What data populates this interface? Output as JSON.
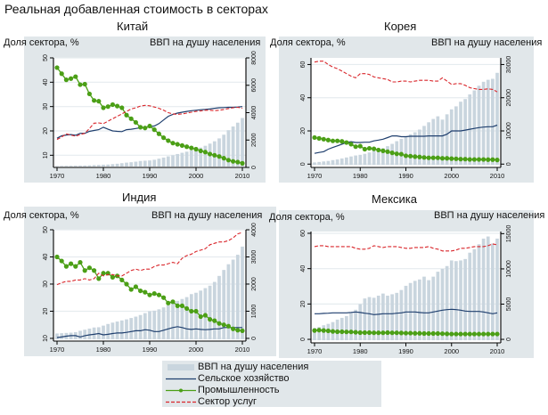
{
  "title": "Реальная добавленная стоимость в секторах",
  "colors": {
    "gdp_bars": "#c9d5de",
    "agriculture": "#1f3f6e",
    "industry": "#4b9f16",
    "services": "#d9262b",
    "panel_bg": "#e1e7ea",
    "plot_bg": "#ffffff",
    "grid": "#e6ecef"
  },
  "legend": {
    "items": [
      {
        "key": "gdp",
        "label": "ВВП на душу населения"
      },
      {
        "key": "agriculture",
        "label": "Сельское хозяйство"
      },
      {
        "key": "industry",
        "label": "Промышленность"
      },
      {
        "key": "services",
        "label": "Сектор услуг"
      }
    ]
  },
  "chart_data": [
    {
      "type": "bar+line",
      "title": "Китай",
      "ylabel_left": "Доля сектора, %",
      "ylabel_right": "ВВП на душу населения",
      "x": [
        1970,
        1971,
        1972,
        1973,
        1974,
        1975,
        1976,
        1977,
        1978,
        1979,
        1980,
        1981,
        1982,
        1983,
        1984,
        1985,
        1986,
        1987,
        1988,
        1989,
        1990,
        1991,
        1992,
        1993,
        1994,
        1995,
        1996,
        1997,
        1998,
        1999,
        2000,
        2001,
        2002,
        2003,
        2004,
        2005,
        2006,
        2007,
        2008,
        2009,
        2010
      ],
      "xticks": [
        1970,
        1980,
        1990,
        2000,
        2010
      ],
      "ylim_left": [
        5,
        50
      ],
      "yticks_left": [
        10,
        20,
        30,
        40,
        50
      ],
      "ylim_right": [
        0,
        8000
      ],
      "yticks_right": [
        0,
        2000,
        4000,
        6000,
        8000
      ],
      "series": [
        {
          "name": "ВВП на душу населения",
          "kind": "bar",
          "axis": "right",
          "values": [
            110,
            115,
            120,
            125,
            130,
            135,
            140,
            150,
            170,
            180,
            200,
            210,
            240,
            270,
            310,
            350,
            380,
            420,
            470,
            490,
            510,
            560,
            640,
            720,
            810,
            890,
            980,
            1070,
            1150,
            1240,
            1340,
            1450,
            1580,
            1740,
            1910,
            2120,
            2390,
            2720,
            2990,
            3270,
            3610
          ]
        },
        {
          "name": "Сельское хозяйство",
          "kind": "line",
          "axis": "left",
          "values": [
            17,
            18,
            18.3,
            18.5,
            18.2,
            19,
            19,
            19.8,
            20.2,
            20.5,
            21.5,
            20.7,
            20,
            19.8,
            19.7,
            20.5,
            20.7,
            21,
            21.3,
            21.5,
            21.8,
            22,
            23,
            24.5,
            26,
            26.8,
            27.3,
            27.7,
            28,
            28.3,
            28.5,
            28.7,
            28.8,
            29,
            29.3,
            29.5,
            29.6,
            29.7,
            29.7,
            29.8,
            30
          ]
        },
        {
          "name": "Промышленность",
          "kind": "line-marker",
          "axis": "left",
          "values": [
            46,
            43.5,
            41,
            41.5,
            42.3,
            39,
            39.2,
            35.2,
            32.5,
            32.2,
            29.5,
            30,
            30.8,
            30.2,
            29.5,
            26.5,
            25,
            23.5,
            21.5,
            21.2,
            22,
            20.5,
            18.8,
            17.2,
            16,
            15,
            14.5,
            14,
            13.5,
            13,
            12.5,
            11.8,
            11.3,
            10.5,
            10,
            9.5,
            8.8,
            8,
            7.5,
            7.2,
            6.7
          ]
        },
        {
          "name": "Сектор услуг",
          "kind": "dashed",
          "axis": "left",
          "values": [
            16.5,
            17.5,
            18.8,
            18.3,
            17.8,
            18.5,
            19,
            21,
            23.2,
            23.3,
            23,
            24,
            25,
            26,
            27,
            28,
            29,
            29.5,
            30.2,
            30.5,
            30.3,
            29.8,
            29.3,
            28.5,
            27.5,
            27,
            26.8,
            27,
            27.3,
            27.7,
            28,
            28.2,
            28.5,
            28.5,
            28.3,
            28.5,
            28.8,
            29.2,
            29.5,
            29.7,
            29.3
          ]
        }
      ]
    },
    {
      "type": "bar+line",
      "title": "Корея",
      "ylabel_left": "Доля сектора, %",
      "ylabel_right": "ВВП на душу населения",
      "x": [
        1970,
        1971,
        1972,
        1973,
        1974,
        1975,
        1976,
        1977,
        1978,
        1979,
        1980,
        1981,
        1982,
        1983,
        1984,
        1985,
        1986,
        1987,
        1988,
        1989,
        1990,
        1991,
        1992,
        1993,
        1994,
        1995,
        1996,
        1997,
        1998,
        1999,
        2000,
        2001,
        2002,
        2003,
        2004,
        2005,
        2006,
        2007,
        2008,
        2009,
        2010
      ],
      "xticks": [
        1970,
        1980,
        1990,
        2000,
        2010
      ],
      "ylim_left": [
        -2,
        64
      ],
      "yticks_left": [
        0,
        20,
        40,
        60
      ],
      "ylim_right": [
        -1000,
        32000
      ],
      "yticks_right": [
        0,
        10000,
        20000,
        30000
      ],
      "series": [
        {
          "name": "ВВП на душу населения",
          "kind": "bar",
          "axis": "right",
          "values": [
            500,
            650,
            800,
            950,
            1200,
            1400,
            1700,
            2000,
            2300,
            2600,
            2800,
            3100,
            3500,
            4000,
            4400,
            4800,
            5400,
            6100,
            6900,
            7600,
            8300,
            9000,
            9600,
            10400,
            11500,
            12600,
            13600,
            14400,
            13400,
            15000,
            16500,
            17400,
            18800,
            19600,
            21000,
            22200,
            23600,
            24800,
            25400,
            25700,
            27500
          ]
        },
        {
          "name": "Сельское хозяйство",
          "kind": "line",
          "axis": "left",
          "values": [
            6.5,
            7,
            7.5,
            9,
            10,
            11,
            12,
            13,
            13.5,
            13,
            13,
            13.2,
            13.2,
            14,
            14.5,
            15,
            16,
            17,
            17,
            16.5,
            16.5,
            16.8,
            16.8,
            16.8,
            16.8,
            17,
            17,
            17,
            17,
            18,
            20,
            20,
            20,
            20.5,
            21,
            21.5,
            22,
            22.3,
            22.5,
            22.5,
            23.5
          ]
        },
        {
          "name": "Промышленность",
          "kind": "line-marker",
          "axis": "left",
          "values": [
            16,
            15.5,
            15,
            14.5,
            14,
            14,
            13.7,
            13,
            12,
            10.5,
            10.8,
            9,
            9.5,
            9.2,
            8.5,
            8,
            7.5,
            6.8,
            6.2,
            6,
            5,
            4.8,
            4.5,
            4.3,
            4,
            3.8,
            3.8,
            3.8,
            3.5,
            3.5,
            3.3,
            3.2,
            3,
            3,
            2.8,
            2.8,
            2.8,
            2.8,
            2.7,
            2.7,
            2.5
          ]
        },
        {
          "name": "Сектор услуг",
          "kind": "dashed",
          "axis": "left",
          "values": [
            61.5,
            62,
            62,
            60,
            58.5,
            57.5,
            56,
            54.5,
            53,
            52,
            54.5,
            54.5,
            54,
            52.5,
            52,
            51.5,
            51,
            49.5,
            49.5,
            50,
            50,
            49.5,
            50,
            50.5,
            50.5,
            50.5,
            50,
            50,
            52,
            50,
            48,
            48.5,
            48.5,
            47.5,
            46,
            45.5,
            45,
            45,
            45.3,
            45,
            43.5
          ]
        }
      ]
    },
    {
      "type": "bar+line",
      "title": "Индия",
      "ylabel_left": "Доля сектора, %",
      "ylabel_right": "ВВП на душу населения",
      "x": [
        1970,
        1971,
        1972,
        1973,
        1974,
        1975,
        1976,
        1977,
        1978,
        1979,
        1980,
        1981,
        1982,
        1983,
        1984,
        1985,
        1986,
        1987,
        1988,
        1989,
        1990,
        1991,
        1992,
        1993,
        1994,
        1995,
        1996,
        1997,
        1998,
        1999,
        2000,
        2001,
        2002,
        2003,
        2004,
        2005,
        2006,
        2007,
        2008,
        2009,
        2010
      ],
      "xticks": [
        1970,
        1980,
        1990,
        2000,
        2010
      ],
      "ylim_left": [
        9,
        50
      ],
      "yticks_left": [
        10,
        20,
        30,
        40,
        50
      ],
      "ylim_right": [
        -100,
        4000
      ],
      "yticks_right": [
        0,
        1000,
        2000,
        3000,
        4000
      ],
      "series": [
        {
          "name": "ВВП на душу населения",
          "kind": "bar",
          "axis": "right",
          "values": [
            180,
            190,
            200,
            210,
            230,
            280,
            320,
            360,
            400,
            410,
            470,
            530,
            580,
            620,
            660,
            700,
            750,
            800,
            860,
            930,
            1000,
            1020,
            1070,
            1140,
            1220,
            1300,
            1380,
            1450,
            1520,
            1630,
            1680,
            1760,
            1850,
            1940,
            2080,
            2300,
            2520,
            2730,
            2900,
            3080,
            3380
          ]
        },
        {
          "name": "Сельское хозяйство",
          "kind": "line",
          "axis": "left",
          "values": [
            10.3,
            10.5,
            10.8,
            11,
            11,
            10.5,
            11,
            11.3,
            11.5,
            11.8,
            11.3,
            11.5,
            11.8,
            12,
            12,
            12.2,
            12.5,
            12.8,
            12.8,
            13.2,
            13,
            12.5,
            12.5,
            13,
            13.5,
            14,
            14.3,
            14,
            13.5,
            13.3,
            13.5,
            13.3,
            13.2,
            13.3,
            13.5,
            13.5,
            14,
            14,
            14,
            14,
            14
          ]
        },
        {
          "name": "Промышленность",
          "kind": "line-marker",
          "axis": "left",
          "values": [
            40,
            38.5,
            36.5,
            37.5,
            36.5,
            38,
            35,
            36,
            35,
            32,
            34,
            34,
            32.5,
            33,
            31.5,
            30,
            28,
            29,
            27.5,
            27,
            26,
            26.5,
            26,
            25,
            23,
            23.5,
            22,
            22,
            21,
            20,
            20,
            18,
            18.5,
            17,
            16.5,
            15.5,
            15,
            14.5,
            13.5,
            13,
            12.8
          ]
        },
        {
          "name": "Сектор услуг",
          "kind": "dashed",
          "axis": "left",
          "values": [
            29.8,
            30.5,
            31,
            31,
            31.5,
            31.5,
            32,
            31.5,
            32,
            34,
            33,
            33.5,
            33.5,
            33,
            33,
            34,
            35,
            35.5,
            35,
            35.5,
            35.5,
            36.5,
            37,
            37,
            37.5,
            38,
            37.5,
            39.5,
            40.5,
            41,
            42,
            42.5,
            43,
            44.5,
            45,
            45.5,
            45.5,
            46,
            47,
            48.5,
            49
          ]
        }
      ]
    },
    {
      "type": "bar+line",
      "title": "Мексика",
      "ylabel_left": "Доля сектора, %",
      "ylabel_right": "ВВП на душу населения",
      "x": [
        1970,
        1971,
        1972,
        1973,
        1974,
        1975,
        1976,
        1977,
        1978,
        1979,
        1980,
        1981,
        1982,
        1983,
        1984,
        1985,
        1986,
        1987,
        1988,
        1989,
        1990,
        1991,
        1992,
        1993,
        1994,
        1995,
        1996,
        1997,
        1998,
        1999,
        2000,
        2001,
        2002,
        2003,
        2004,
        2005,
        2006,
        2007,
        2008,
        2009,
        2010
      ],
      "xticks": [
        1970,
        1980,
        1990,
        2000,
        2010
      ],
      "ylim_left": [
        -2,
        61
      ],
      "yticks_left": [
        0,
        20,
        40,
        60
      ],
      "ylim_right": [
        -500,
        15300
      ],
      "yticks_right": [
        0,
        5000,
        10000,
        15000
      ],
      "series": [
        {
          "name": "ВВП на душу населения",
          "kind": "bar",
          "axis": "right",
          "values": [
            1600,
            1750,
            2000,
            2200,
            2450,
            2800,
            3050,
            3300,
            3700,
            4200,
            5000,
            5800,
            6000,
            5900,
            6200,
            6500,
            6200,
            6400,
            6600,
            7000,
            7600,
            8000,
            8300,
            8500,
            8900,
            8400,
            8900,
            9600,
            10000,
            10400,
            11200,
            11100,
            11200,
            11400,
            12300,
            12800,
            13500,
            14300,
            14600,
            13600,
            14300
          ]
        },
        {
          "name": "Сельское хозяйство",
          "kind": "line",
          "axis": "left",
          "values": [
            14.5,
            14.5,
            14.7,
            14.8,
            15,
            15,
            15,
            15,
            15.2,
            15.5,
            15.2,
            14.8,
            14.5,
            14,
            14.2,
            14.5,
            14.5,
            14.5,
            14.8,
            15,
            15.5,
            15.5,
            15.5,
            15.2,
            15,
            15,
            15.5,
            16,
            16.5,
            16.8,
            17,
            16.8,
            16.5,
            16,
            15.8,
            15.8,
            15.8,
            15.5,
            15,
            14.5,
            15
          ]
        },
        {
          "name": "Промышленность",
          "kind": "line-marker",
          "axis": "left",
          "values": [
            5,
            5.2,
            5,
            4.8,
            4.5,
            4.3,
            4.3,
            4.2,
            4.2,
            4,
            3.8,
            3.8,
            3.8,
            3.7,
            3.7,
            3.7,
            3.8,
            3.7,
            3.7,
            3.6,
            3.5,
            3.5,
            3.4,
            3.4,
            3.3,
            3.3,
            3.3,
            3.3,
            3.2,
            3.1,
            3,
            3,
            3,
            3,
            3,
            3,
            3,
            3,
            3,
            3,
            3
          ]
        },
        {
          "name": "Сектор услуг",
          "kind": "dashed",
          "axis": "left",
          "values": [
            52.5,
            53,
            53,
            52.5,
            52.5,
            52.5,
            52.5,
            52.5,
            52.5,
            51.5,
            51,
            51,
            51.5,
            53,
            52.5,
            52,
            52.5,
            52.5,
            52.5,
            52,
            51.5,
            51.5,
            52,
            52,
            52,
            52.5,
            51.5,
            51,
            50,
            50,
            50,
            50.5,
            51.5,
            51.5,
            52,
            52.5,
            52.5,
            52.5,
            53,
            54,
            53.5
          ]
        }
      ]
    }
  ]
}
